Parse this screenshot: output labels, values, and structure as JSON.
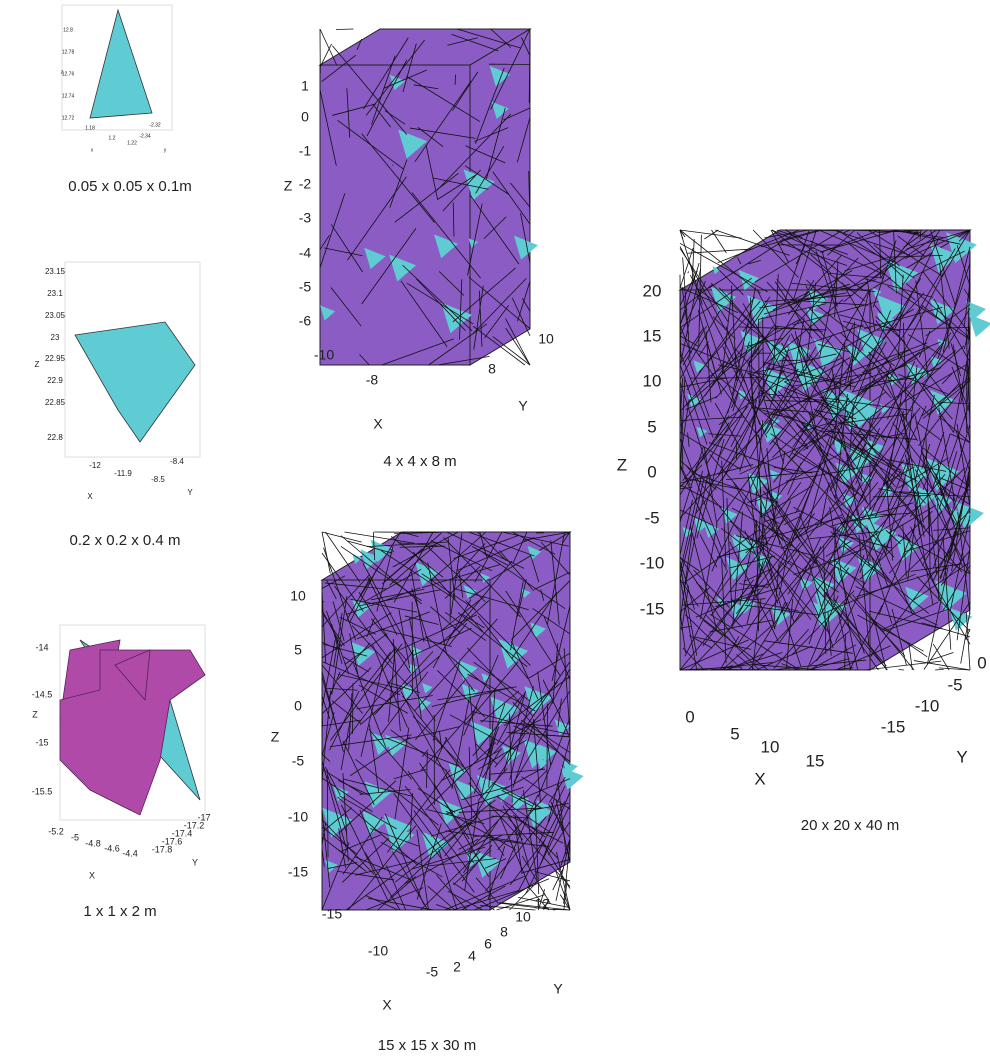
{
  "panels": [
    {
      "caption": "0.05 x 0.05 x 0.1m",
      "z_label": "z",
      "x_label": "x",
      "y_label": "y",
      "z_ticks": [
        "12.8",
        "12.78",
        "12.76",
        "12.74",
        "12.72"
      ],
      "x_ticks": [
        "1.18",
        "1.2",
        "1.22"
      ],
      "y_ticks": [
        "-2.32",
        "-2.34"
      ]
    },
    {
      "caption": "0.2 x 0.2 x 0.4 m",
      "z_label": "Z",
      "x_label": "X",
      "y_label": "Y",
      "z_ticks": [
        "23.15",
        "23.1",
        "23.05",
        "23",
        "22.95",
        "22.9",
        "22.85",
        "22.8"
      ],
      "x_ticks": [
        "-12",
        "-11.9"
      ],
      "y_ticks": [
        "-8.4",
        "-8.5"
      ]
    },
    {
      "caption": "1 x 1 x 2 m",
      "z_label": "Z",
      "x_label": "X",
      "y_label": "Y",
      "z_ticks": [
        "-14",
        "-14.5",
        "-15",
        "-15.5"
      ],
      "x_ticks": [
        "-5.2",
        "-5",
        "-4.8",
        "-4.6",
        "-4.4"
      ],
      "y_ticks": [
        "-17.8",
        "-17.6",
        "-17.4",
        "-17.2",
        "-17"
      ]
    },
    {
      "caption": "4 x 4 x 8 m",
      "z_label": "Z",
      "x_label": "X",
      "y_label": "Y",
      "z_ticks": [
        "1",
        "0",
        "-1",
        "-2",
        "-3",
        "-4",
        "-5",
        "-6"
      ],
      "x_ticks": [
        "-10",
        "-8"
      ],
      "y_ticks": [
        "8",
        "10"
      ]
    },
    {
      "caption": "15 x 15 x 30 m",
      "z_label": "Z",
      "x_label": "X",
      "y_label": "Y",
      "z_ticks": [
        "10",
        "5",
        "0",
        "-5",
        "-10",
        "-15"
      ],
      "x_ticks": [
        "-15",
        "-10",
        "-5"
      ],
      "y_ticks": [
        "2",
        "4",
        "6",
        "8",
        "10",
        "12"
      ]
    },
    {
      "caption": "20 x 20 x 40 m",
      "z_label": "Z",
      "x_label": "X",
      "y_label": "Y",
      "z_ticks": [
        "20",
        "15",
        "10",
        "5",
        "0",
        "-5",
        "-10",
        "-15"
      ],
      "x_ticks": [
        "0",
        "5",
        "10",
        "15"
      ],
      "y_ticks": [
        "0",
        "-5",
        "-10",
        "-15"
      ]
    }
  ]
}
